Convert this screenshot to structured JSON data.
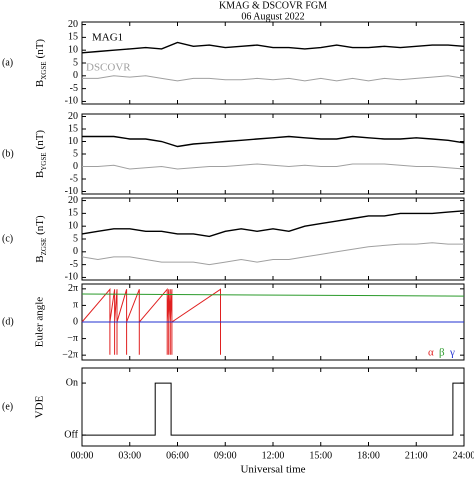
{
  "chart_data": [
    {
      "type": "line",
      "title": "KMAG & DSCOVR FGM",
      "subtitle": "06 August 2022",
      "panel": "(a)",
      "ylabel": {
        "text": "B",
        "sub": "XGSE",
        "unit": "(nT)"
      },
      "xlim": [
        0,
        24
      ],
      "ylim": [
        -11,
        21
      ],
      "yticks": [
        -10,
        -5,
        0,
        5,
        10,
        15,
        20
      ],
      "x": [
        0,
        1,
        2,
        3,
        4,
        5,
        6,
        7,
        8,
        9,
        10,
        11,
        12,
        13,
        14,
        15,
        16,
        17,
        18,
        19,
        20,
        21,
        22,
        23,
        24
      ],
      "series": [
        {
          "name": "MAG1",
          "color": "#000000",
          "values": [
            9,
            9.5,
            10,
            10.5,
            11,
            10.5,
            13,
            11.5,
            12,
            11,
            11.5,
            12,
            11,
            11,
            10.5,
            11,
            12,
            11,
            11,
            11.5,
            11,
            11.5,
            12,
            12,
            11.5
          ]
        },
        {
          "name": "DSCOVR",
          "color": "#a0a0a0",
          "values": [
            -1,
            -1,
            0,
            -0.5,
            0,
            -1,
            -2,
            -1,
            -1,
            -1.5,
            -1.5,
            -1,
            -1.5,
            -1,
            -2,
            -1,
            -2,
            -1,
            -2,
            -1,
            -1.5,
            -1,
            -0.5,
            0,
            -1
          ]
        }
      ]
    },
    {
      "type": "line",
      "panel": "(b)",
      "ylabel": {
        "text": "B",
        "sub": "YGSE",
        "unit": "(nT)"
      },
      "xlim": [
        0,
        24
      ],
      "ylim": [
        -11,
        21
      ],
      "yticks": [
        -10,
        -5,
        0,
        5,
        10,
        15,
        20
      ],
      "x": [
        0,
        1,
        2,
        3,
        4,
        5,
        6,
        7,
        8,
        9,
        10,
        11,
        12,
        13,
        14,
        15,
        16,
        17,
        18,
        19,
        20,
        21,
        22,
        23,
        24
      ],
      "series": [
        {
          "color": "#000000",
          "values": [
            12,
            12,
            12,
            11,
            11,
            10,
            8,
            9,
            9.5,
            10,
            10.5,
            11,
            11.5,
            12,
            11.5,
            11,
            11,
            12,
            11.5,
            11,
            11,
            11.5,
            11,
            10.5,
            9.5
          ]
        },
        {
          "color": "#a0a0a0",
          "values": [
            0,
            0,
            0.5,
            -1,
            -0.5,
            0,
            -1,
            -0.5,
            0,
            0,
            0.5,
            1,
            0.5,
            0,
            0.5,
            0,
            0,
            1,
            1,
            1,
            0.5,
            0,
            0,
            -0.5,
            -1
          ]
        }
      ]
    },
    {
      "type": "line",
      "panel": "(c)",
      "ylabel": {
        "text": "B",
        "sub": "ZGSE",
        "unit": "(nT)"
      },
      "xlim": [
        0,
        24
      ],
      "ylim": [
        -11,
        21
      ],
      "yticks": [
        -10,
        -5,
        0,
        5,
        10,
        15,
        20
      ],
      "x": [
        0,
        1,
        2,
        3,
        4,
        5,
        6,
        7,
        8,
        9,
        10,
        11,
        12,
        13,
        14,
        15,
        16,
        17,
        18,
        19,
        20,
        21,
        22,
        23,
        24
      ],
      "series": [
        {
          "color": "#000000",
          "values": [
            7,
            8,
            9,
            9,
            8,
            8,
            7,
            7,
            6,
            8,
            9,
            8,
            9,
            8,
            10,
            11,
            12,
            13,
            14,
            14,
            15,
            15,
            15,
            15.5,
            16
          ]
        },
        {
          "color": "#a0a0a0",
          "values": [
            -2,
            -3,
            -2,
            -2,
            -3,
            -4,
            -4,
            -4,
            -5,
            -4,
            -3,
            -4,
            -3,
            -3,
            -2,
            -1,
            0,
            1,
            2,
            2.5,
            3,
            3,
            3.5,
            3,
            3
          ]
        }
      ]
    },
    {
      "type": "line",
      "panel": "(d)",
      "ylabel": "Euler angle",
      "xlim": [
        0,
        24
      ],
      "ylim": [
        -7.2,
        7.2
      ],
      "yticks": [
        {
          "value": -6.283,
          "label": "−2π"
        },
        {
          "value": -3.142,
          "label": "−π"
        },
        0,
        {
          "value": 3.142,
          "label": "π"
        },
        {
          "value": 6.283,
          "label": "2π"
        }
      ],
      "series": [
        {
          "name": "α",
          "color": "#e02020",
          "x": [
            0,
            1.75,
            1.75,
            1.75,
            2.05,
            2.05,
            2.05,
            2.2,
            2.2,
            2.2,
            2.8,
            2.8,
            2.8,
            3.6,
            3.6,
            3.6,
            5.35,
            5.35,
            5.35,
            5.45,
            5.45,
            5.45,
            5.55,
            5.55,
            5.55,
            5.65,
            5.65,
            5.65,
            8.7,
            8.7,
            8.7,
            24
          ],
          "values": [
            0,
            6.2,
            -6.2,
            0,
            6.2,
            -6.2,
            0,
            6.2,
            -6.2,
            0,
            6.2,
            -6.2,
            0,
            6.2,
            -6.2,
            0,
            6.2,
            -6.2,
            0,
            6.2,
            -6.2,
            0,
            6.2,
            -6.2,
            0,
            6.2,
            -6.2,
            0,
            6.2,
            -6.2,
            0,
            0
          ]
        },
        {
          "name": "β",
          "color": "#2a9a2a",
          "x": [
            0,
            24
          ],
          "values": [
            5.3,
            4.9
          ]
        },
        {
          "name": "γ",
          "color": "#2030d0",
          "x": [
            0,
            24
          ],
          "values": [
            0,
            0
          ]
        }
      ]
    },
    {
      "type": "line",
      "panel": "(e)",
      "ylabel": "VDE",
      "xlabel": "Universal time",
      "xlim": [
        0,
        24
      ],
      "ylim": [
        -0.21,
        1.29
      ],
      "yticks": [
        {
          "value": 0,
          "label": "Off"
        },
        {
          "value": 1,
          "label": "On"
        }
      ],
      "xticks": [
        {
          "value": 0,
          "label": "00:00"
        },
        {
          "value": 3,
          "label": "03:00"
        },
        {
          "value": 6,
          "label": "06:00"
        },
        {
          "value": 9,
          "label": "09:00"
        },
        {
          "value": 12,
          "label": "12:00"
        },
        {
          "value": 15,
          "label": "15:00"
        },
        {
          "value": 18,
          "label": "18:00"
        },
        {
          "value": 21,
          "label": "21:00"
        },
        {
          "value": 24,
          "label": "24:00"
        }
      ],
      "series": [
        {
          "color": "#000000",
          "x": [
            0,
            4.6,
            4.6,
            5.6,
            5.6,
            23.3,
            23.3,
            24
          ],
          "values": [
            0,
            0,
            1,
            1,
            0,
            0,
            1,
            1
          ]
        }
      ]
    }
  ]
}
